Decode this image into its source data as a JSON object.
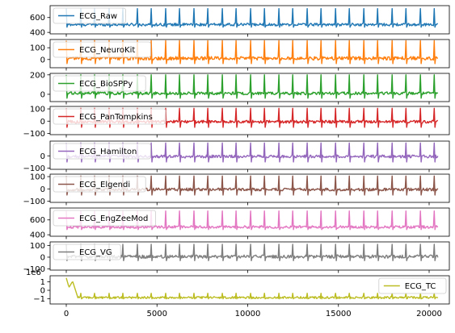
{
  "chart_data": {
    "type": "line",
    "layout": "9 vertically stacked subplots sharing the x axis",
    "x_range": [
      0,
      20500
    ],
    "x_ticks": [
      0,
      5000,
      10000,
      15000,
      20000
    ],
    "x_tick_labels": [
      "0",
      "5000",
      "10000",
      "15000",
      "20000"
    ],
    "grid": false,
    "subplots": [
      {
        "name": "ECG_Raw",
        "color": "#1f77b4",
        "legend_position": "upper-left",
        "ylim": [
          380,
          760
        ],
        "y_ticks": [
          400,
          600
        ],
        "y_tick_labels": [
          "400",
          "600"
        ],
        "baseline": 505,
        "noise": 18,
        "peak": 720,
        "trough": 470,
        "beat_period": 780
      },
      {
        "name": "ECG_NeuroKit",
        "color": "#ff7f0e",
        "legend_position": "upper-left",
        "ylim": [
          -70,
          170
        ],
        "y_ticks": [
          0,
          100
        ],
        "y_tick_labels": [
          "0",
          "100"
        ],
        "baseline": 10,
        "noise": 15,
        "peak": 160,
        "trough": -35,
        "beat_period": 780
      },
      {
        "name": "ECG_BioSPPy",
        "color": "#2ca02c",
        "legend_position": "upper-left",
        "ylim": [
          -75,
          215
        ],
        "y_ticks": [
          0,
          200
        ],
        "y_tick_labels": [
          "0",
          "200"
        ],
        "baseline": 10,
        "noise": 15,
        "peak": 200,
        "trough": -40,
        "beat_period": 780
      },
      {
        "name": "ECG_PanTompkins",
        "color": "#d62728",
        "legend_position": "upper-left",
        "ylim": [
          -110,
          120
        ],
        "y_ticks": [
          -100,
          0,
          100
        ],
        "y_tick_labels": [
          "−100",
          "0",
          "100"
        ],
        "baseline": -5,
        "noise": 12,
        "peak": 105,
        "trough": -50,
        "beat_period": 780
      },
      {
        "name": "ECG_Hamilton",
        "color": "#9467bd",
        "legend_position": "upper-left",
        "ylim": [
          -110,
          120
        ],
        "y_ticks": [
          -100,
          0
        ],
        "y_tick_labels": [
          "−100",
          "0"
        ],
        "baseline": -5,
        "noise": 12,
        "peak": 105,
        "trough": -50,
        "beat_period": 780
      },
      {
        "name": "ECG_Elgendi",
        "color": "#8c564b",
        "legend_position": "upper-left",
        "ylim": [
          -110,
          120
        ],
        "y_ticks": [
          -100,
          0,
          100
        ],
        "y_tick_labels": [
          "−100",
          "0",
          "100"
        ],
        "baseline": -5,
        "noise": 12,
        "peak": 105,
        "trough": -50,
        "beat_period": 780
      },
      {
        "name": "ECG_EngZeeMod",
        "color": "#e377c2",
        "legend_position": "upper-left",
        "ylim": [
          380,
          760
        ],
        "y_ticks": [
          400,
          600
        ],
        "y_tick_labels": [
          "400",
          "600"
        ],
        "baseline": 505,
        "noise": 18,
        "peak": 720,
        "trough": 470,
        "beat_period": 780
      },
      {
        "name": "ECG_VG",
        "color": "#7f7f7f",
        "legend_position": "upper-left",
        "ylim": [
          -110,
          130
        ],
        "y_ticks": [
          -100,
          0,
          100
        ],
        "y_tick_labels": [
          "−100",
          "0",
          "100"
        ],
        "baseline": 5,
        "noise": 14,
        "peak": 110,
        "trough": -30,
        "beat_period": 780
      },
      {
        "name": "ECG_TC",
        "color": "#bcbd22",
        "legend_position": "upper-right",
        "ylim": [
          -1.6,
          1.7
        ],
        "y_ticks": [
          -1,
          0,
          1
        ],
        "y_tick_labels": [
          "−1",
          "0",
          "1"
        ],
        "scale_label": "1e6",
        "baseline": -0.85,
        "noise": 0.12,
        "peak": -0.35,
        "trough": -1.0,
        "beat_period": 780,
        "initial_spike": {
          "x": [
            0,
            150,
            350,
            600
          ],
          "y": [
            1.45,
            0.35,
            1.05,
            -0.6
          ]
        }
      }
    ]
  }
}
